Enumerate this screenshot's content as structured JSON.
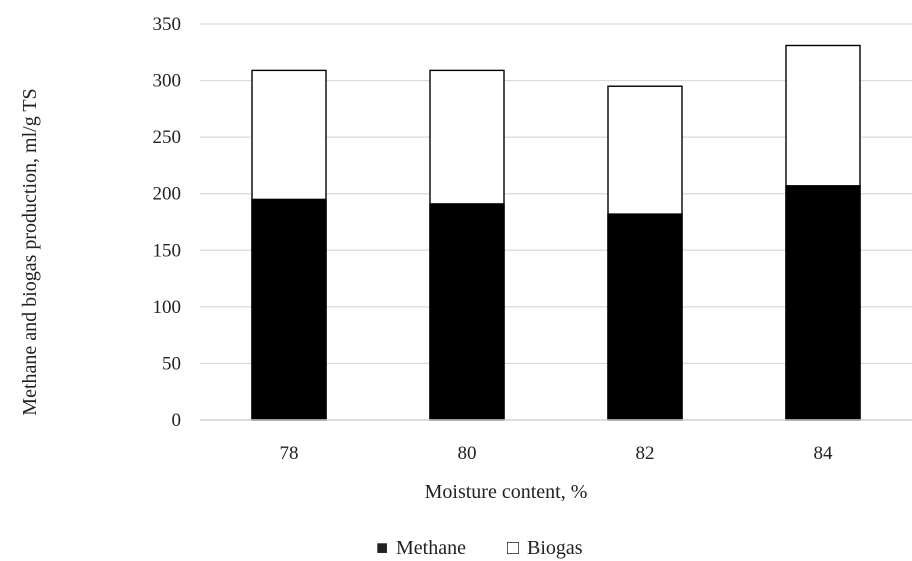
{
  "chart_data": {
    "type": "bar",
    "stacking": "overlay",
    "title": "",
    "xlabel": "Moisture content, %",
    "ylabel": "Methane and biogas production, ml/g TS",
    "categories": [
      "78",
      "80",
      "82",
      "84"
    ],
    "ylim": [
      0,
      350
    ],
    "yticks": [
      "0",
      "50",
      "100",
      "150",
      "200",
      "250",
      "300",
      "350"
    ],
    "grid": true,
    "legend_position": "bottom",
    "series": [
      {
        "name": "Biogas",
        "values": [
          309,
          309,
          295,
          331
        ],
        "color": "#ffffff",
        "stroke": "#000000"
      },
      {
        "name": "Methane",
        "values": [
          195,
          191,
          182,
          207
        ],
        "color": "#000000",
        "stroke": "#000000"
      }
    ],
    "legend": [
      {
        "symbol": "■",
        "label": "Methane"
      },
      {
        "symbol": "□",
        "label": "Biogas"
      }
    ]
  }
}
